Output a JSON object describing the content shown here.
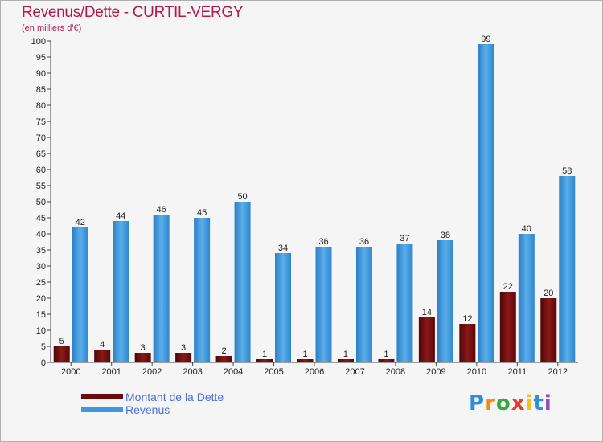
{
  "title": "Revenus/Dette - CURTIL-VERGY",
  "subtitle": "(en milliers d'€)",
  "chart_data": {
    "type": "bar",
    "categories": [
      "2000",
      "2001",
      "2002",
      "2003",
      "2004",
      "2005",
      "2006",
      "2007",
      "2008",
      "2009",
      "2010",
      "2011",
      "2012"
    ],
    "series": [
      {
        "name": "Montant de la Dette",
        "values": [
          5,
          4,
          3,
          3,
          2,
          1,
          1,
          1,
          1,
          14,
          12,
          22,
          20
        ],
        "color": "#6b0a0a"
      },
      {
        "name": "Revenus",
        "values": [
          42,
          44,
          46,
          45,
          50,
          34,
          36,
          36,
          37,
          38,
          99,
          40,
          58
        ],
        "color": "#3d98dd"
      }
    ],
    "ylim": [
      0,
      100
    ],
    "yticks": [
      0,
      5,
      10,
      15,
      20,
      25,
      30,
      35,
      40,
      45,
      50,
      55,
      60,
      65,
      70,
      75,
      80,
      85,
      90,
      95,
      100
    ],
    "grid": false,
    "legend_position": "bottom-left"
  },
  "logo": {
    "text": "Proxiti",
    "letters": [
      {
        "ch": "P",
        "color": "#2e8fd8"
      },
      {
        "ch": "r",
        "color": "#f18a1c"
      },
      {
        "ch": "o",
        "color": "#3aa83a"
      },
      {
        "ch": "x",
        "color": "#e53a2f"
      },
      {
        "ch": "i",
        "color": "#f2c21d"
      },
      {
        "ch": "t",
        "color": "#2e8fd8"
      },
      {
        "ch": "i",
        "color": "#8a4fc2"
      }
    ]
  }
}
